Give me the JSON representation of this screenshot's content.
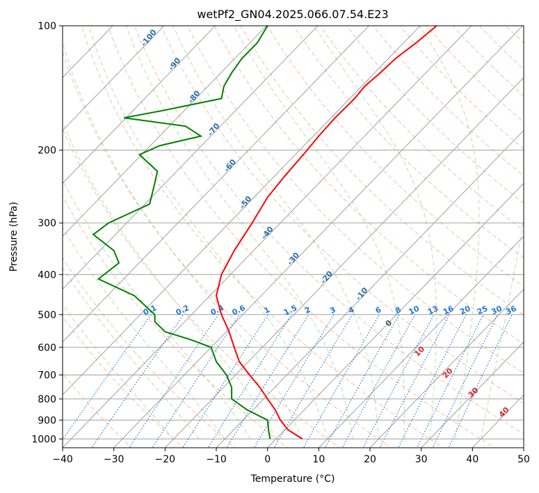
{
  "chart_data": {
    "type": "line",
    "title": "wetPf2_GN04.2025.066.07.54.E23",
    "xlabel": "Temperature (°C)",
    "ylabel": "Pressure (hPa)",
    "xlim": [
      -40,
      50
    ],
    "ylim": [
      1050,
      100
    ],
    "y_scale": "log",
    "x_ticks": [
      -40,
      -30,
      -20,
      -10,
      0,
      10,
      20,
      30,
      40,
      50
    ],
    "x_tick_labels": [
      "−40",
      "−30",
      "−20",
      "−10",
      "0",
      "10",
      "20",
      "30",
      "40",
      "50"
    ],
    "y_ticks": [
      1000,
      900,
      800,
      700,
      600,
      500,
      400,
      300,
      200,
      100
    ],
    "y_tick_labels": [
      "1000",
      "900",
      "800",
      "700",
      "600",
      "500",
      "400",
      "300",
      "200",
      "100"
    ],
    "grid": true,
    "background_lines": {
      "isotherm_color": "#a0a0a0",
      "dry_adiabat_color": "#f4a582",
      "moist_adiabat_color": "#a6d49a",
      "mixing_ratio_color": "#1f77d4",
      "isentrope_color": "#d2b48c"
    },
    "series": [
      {
        "color": "#ff0000",
        "points": [
          [
            6.8,
            1000
          ],
          [
            4.0,
            950
          ],
          [
            2.5,
            900
          ],
          [
            1.5,
            850
          ],
          [
            0,
            800
          ],
          [
            -1.5,
            750
          ],
          [
            -3.5,
            700
          ],
          [
            -5.5,
            650
          ],
          [
            -6.5,
            600
          ],
          [
            -7.5,
            550
          ],
          [
            -9,
            500
          ],
          [
            -10,
            450
          ],
          [
            -9,
            400
          ],
          [
            -6.5,
            350
          ],
          [
            -3,
            300
          ],
          [
            0,
            260
          ],
          [
            3.5,
            230
          ],
          [
            7,
            205
          ],
          [
            10,
            185
          ],
          [
            13,
            168
          ],
          [
            17,
            150
          ],
          [
            19,
            140
          ],
          [
            22,
            130
          ],
          [
            25,
            120
          ],
          [
            29,
            110
          ],
          [
            33,
            100
          ]
        ]
      },
      {
        "color": "#008000",
        "points": [
          [
            0.5,
            1000
          ],
          [
            0.2,
            950
          ],
          [
            0,
            900
          ],
          [
            -4,
            850
          ],
          [
            -7,
            800
          ],
          [
            -7,
            750
          ],
          [
            -8,
            700
          ],
          [
            -10,
            650
          ],
          [
            -11,
            600
          ],
          [
            -15,
            575
          ],
          [
            -20,
            550
          ],
          [
            -22,
            520
          ],
          [
            -22,
            500
          ],
          [
            -26,
            450
          ],
          [
            -33,
            410
          ],
          [
            -29,
            375
          ],
          [
            -30,
            350
          ],
          [
            -34,
            320
          ],
          [
            -31,
            300
          ],
          [
            -23,
            270
          ],
          [
            -22,
            240
          ],
          [
            -21.5,
            225
          ],
          [
            -25,
            205
          ],
          [
            -21,
            195
          ],
          [
            -13,
            185
          ],
          [
            -16,
            175
          ],
          [
            -28,
            167
          ],
          [
            -20,
            160
          ],
          [
            -9,
            150
          ],
          [
            -8.5,
            140
          ],
          [
            -7,
            130
          ],
          [
            -5,
            120
          ],
          [
            -2,
            110
          ],
          [
            0,
            100
          ]
        ]
      }
    ],
    "dry_adiabat_labels": [
      "-100",
      "-90",
      "-80",
      "-70",
      "-60",
      "-50",
      "-40",
      "-30",
      "-20",
      "-10"
    ],
    "moist_adiabat_labels": [
      "0",
      "10",
      "20",
      "30",
      "40"
    ],
    "mixing_ratio_labels": [
      "0.1",
      "0.2",
      "0.4",
      "0.6",
      "1",
      "1.5",
      "2",
      "3",
      "4",
      "6",
      "8",
      "10",
      "13",
      "16",
      "20",
      "25",
      "30",
      "36"
    ]
  }
}
